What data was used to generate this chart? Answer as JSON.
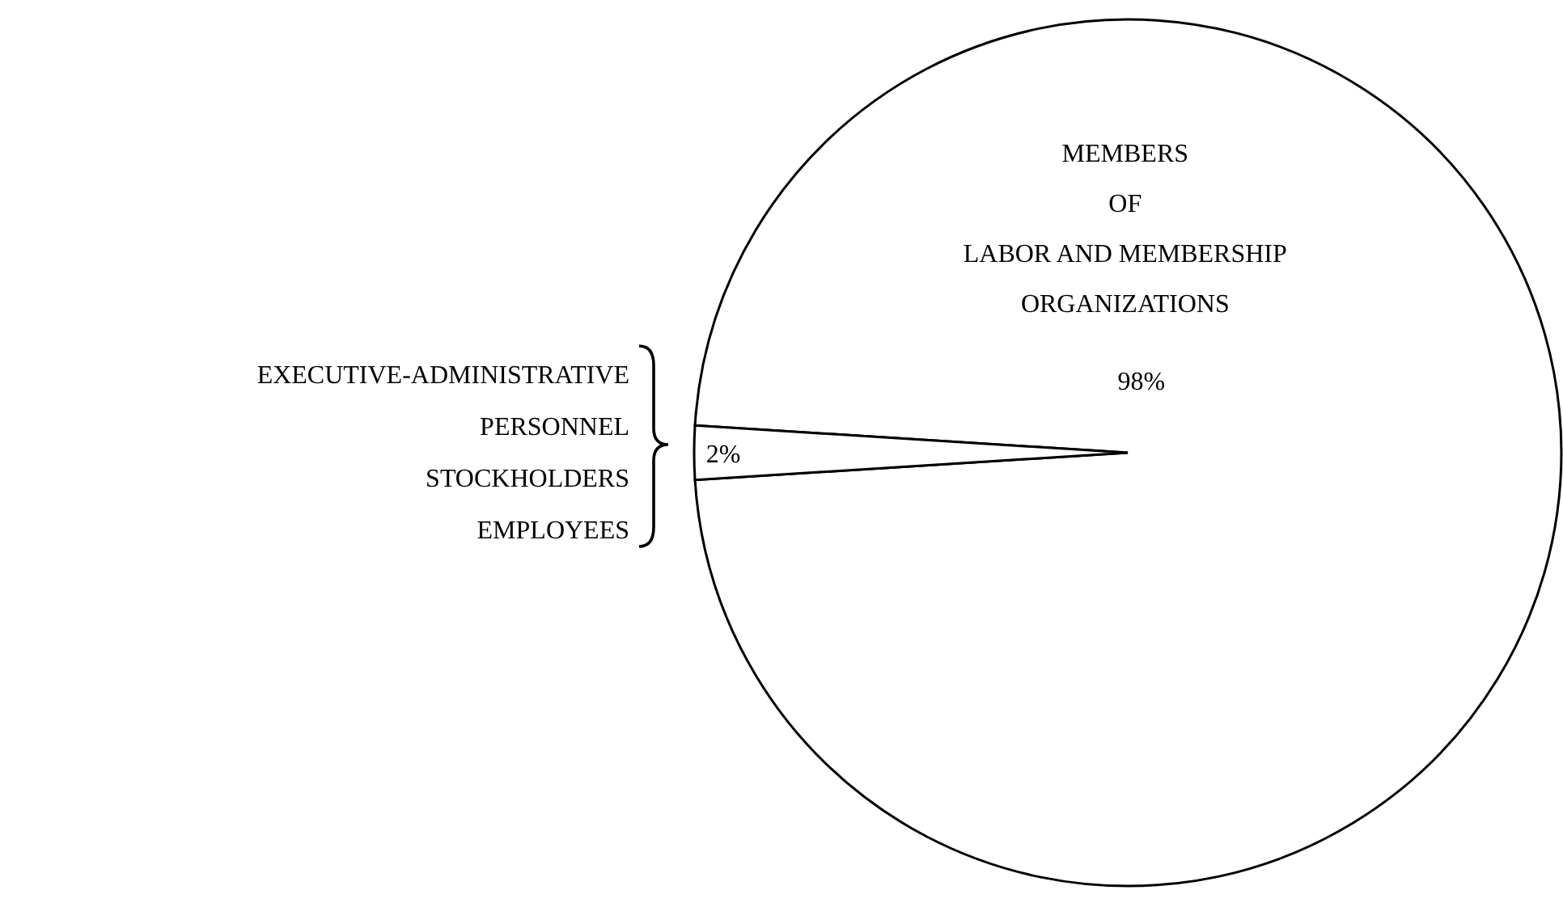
{
  "chart_data": {
    "type": "pie",
    "categories": [
      "MEMBERS\nOF\nLABOR AND MEMBERSHIP\nORGANIZATIONS",
      "EXECUTIVE-ADMINISTRATIVE\nPERSONNEL\nSTOCKHOLDERS\nEMPLOYEES"
    ],
    "values": [
      98,
      2
    ],
    "colors": [
      "#ffffff",
      "#ffffff"
    ],
    "value_labels": [
      "98%",
      "2%"
    ]
  }
}
